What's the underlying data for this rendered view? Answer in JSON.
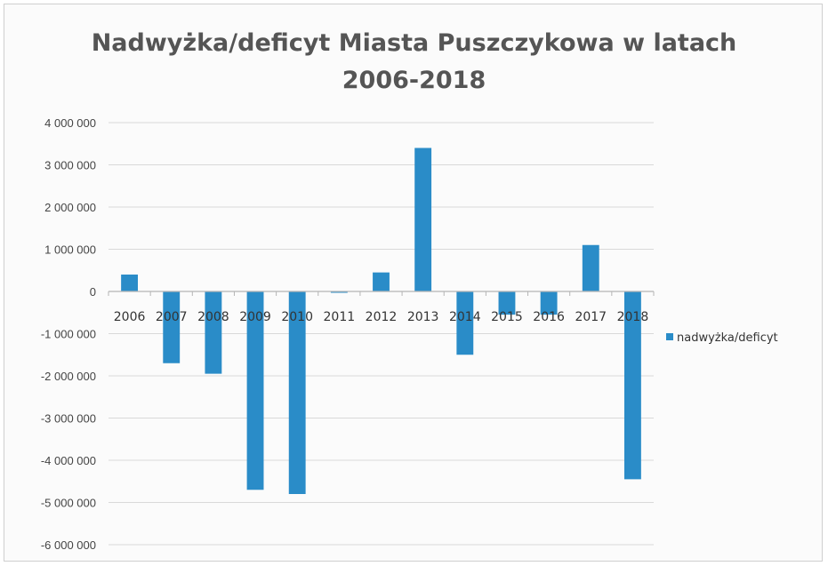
{
  "chart_data": {
    "type": "bar",
    "title_line1": "Nadwyżka/deficyt Miasta Puszczykowa w latach",
    "title_line2": "2006-2018",
    "categories": [
      "2006",
      "2007",
      "2008",
      "2009",
      "2010",
      "2011",
      "2012",
      "2013",
      "2014",
      "2015",
      "2016",
      "2017",
      "2018"
    ],
    "series": [
      {
        "name": "nadwyżka/deficyt",
        "values": [
          400000,
          -1700000,
          -1950000,
          -4700000,
          -4800000,
          -20000,
          450000,
          3400000,
          -1500000,
          -550000,
          -550000,
          1100000,
          -4450000
        ]
      }
    ],
    "ylim": [
      -6000000,
      4000000
    ],
    "yticks": [
      4000000,
      3000000,
      2000000,
      1000000,
      0,
      -1000000,
      -2000000,
      -3000000,
      -4000000,
      -5000000,
      -6000000
    ],
    "ytick_labels": [
      "4 000 000",
      "3 000 000",
      "2 000 000",
      "1 000 000",
      "0",
      "-1 000 000",
      "-2 000 000",
      "-3 000 000",
      "-4 000 000",
      "-5 000 000",
      "-6 000 000"
    ],
    "grid": true,
    "legend_position": "right",
    "colors": {
      "bar": "#2a8cc8",
      "grid": "#d9d9d9",
      "axis": "#b5b5b5"
    }
  }
}
